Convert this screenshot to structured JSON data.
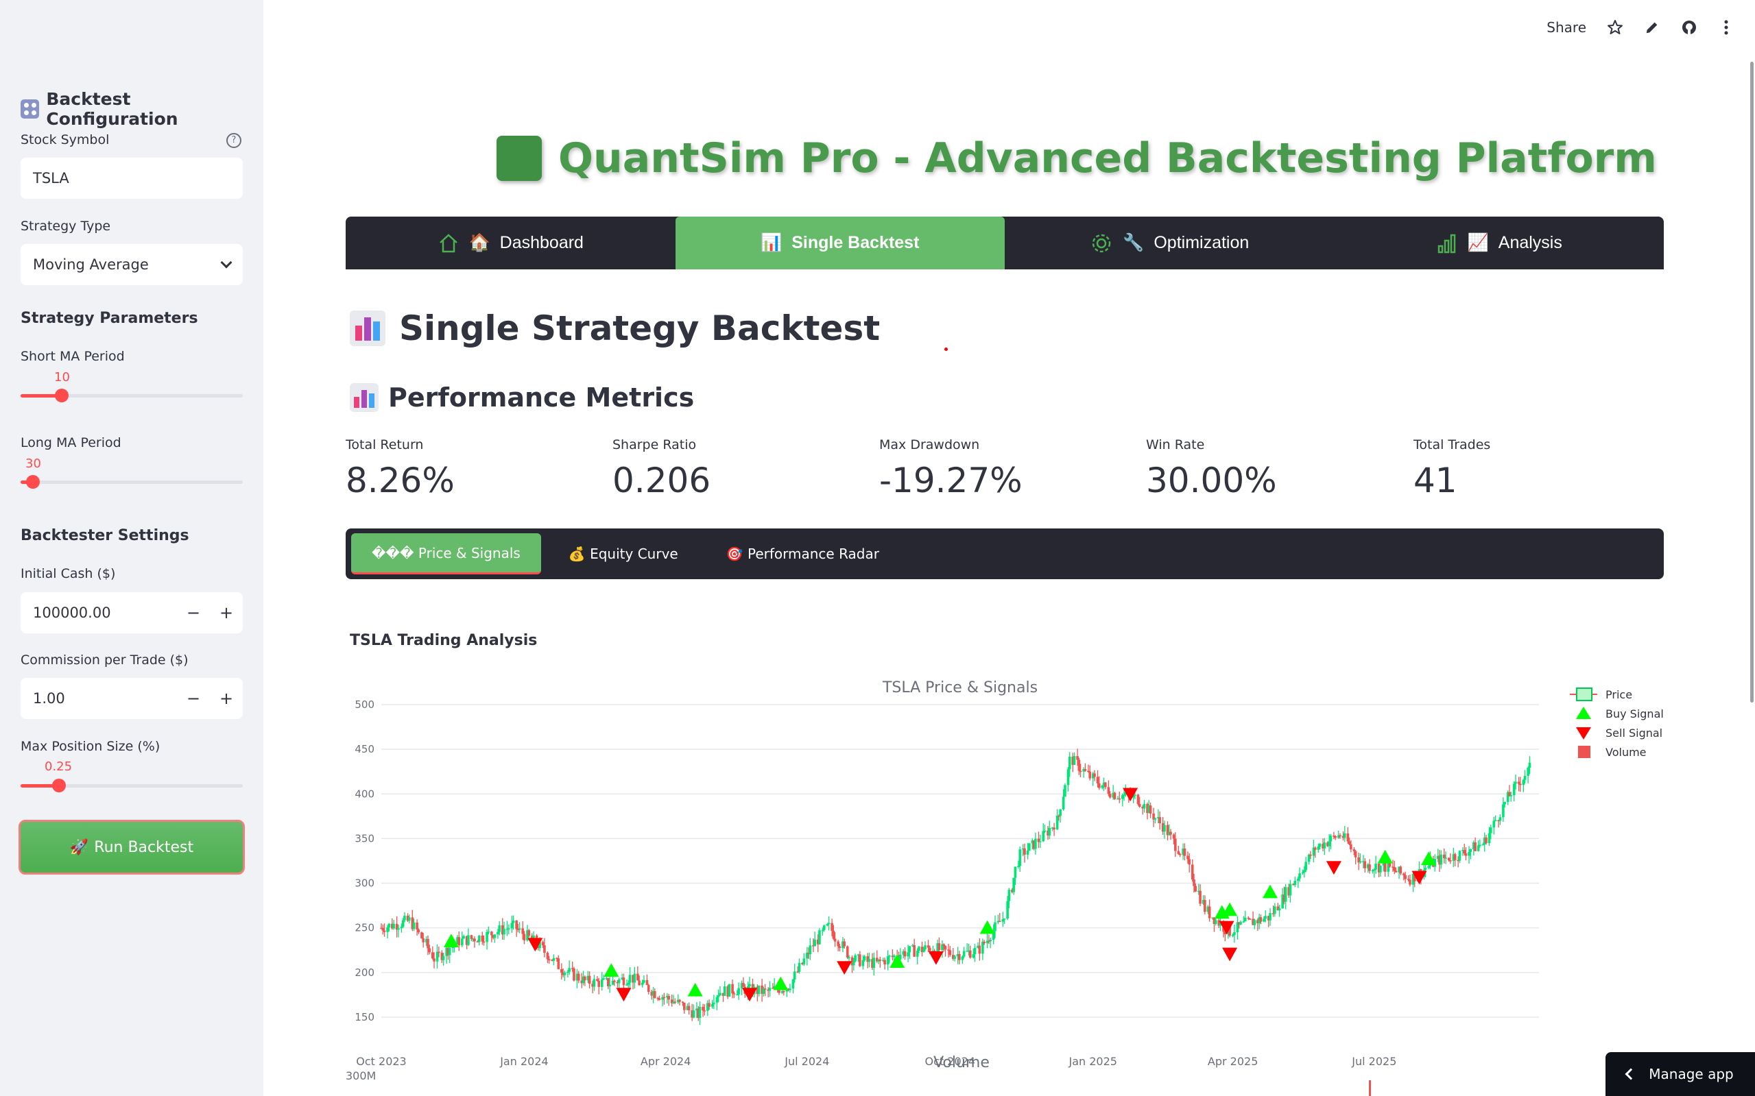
{
  "sidebar": {
    "title": "Backtest Configuration",
    "title_icon": "control-knobs-icon",
    "stock_symbol_label": "Stock Symbol",
    "stock_symbol_value": "TSLA",
    "strategy_type_label": "Strategy Type",
    "strategy_type_value": "Moving Average",
    "strategy_params_heading": "Strategy Parameters",
    "short_ma_label": "Short MA Period",
    "short_ma_value": "10",
    "short_ma_fraction": 0.18,
    "long_ma_label": "Long MA Period",
    "long_ma_value": "30",
    "long_ma_fraction": 0.05,
    "backtester_heading": "Backtester Settings",
    "initial_cash_label": "Initial Cash ($)",
    "initial_cash_value": "100000.00",
    "commission_label": "Commission per Trade ($)",
    "commission_value": "1.00",
    "max_position_label": "Max Position Size (%)",
    "max_position_value": "0.25",
    "max_position_fraction": 0.17,
    "minus": "−",
    "plus": "+",
    "run_button": "Run Backtest",
    "run_icon": "🚀"
  },
  "toolbar": {
    "share": "Share"
  },
  "app_title": "QuantSim Pro - Advanced Backtesting Platform",
  "nav": {
    "tabs": [
      {
        "label": "Dashboard",
        "emoji": "🏠",
        "icon": "home-icon"
      },
      {
        "label": "Single Backtest",
        "emoji": "📊",
        "icon": ""
      },
      {
        "label": "Optimization",
        "emoji": "🔧",
        "icon": "gear-icon"
      },
      {
        "label": "Analysis",
        "emoji": "📈",
        "icon": "bar-chart-icon"
      }
    ],
    "active": 1
  },
  "page": {
    "heading": "Single Strategy Backtest",
    "metrics_heading": "Performance Metrics"
  },
  "metrics": [
    {
      "label": "Total Return",
      "value": "8.26%"
    },
    {
      "label": "Sharpe Ratio",
      "value": "0.206"
    },
    {
      "label": "Max Drawdown",
      "value": "-19.27%"
    },
    {
      "label": "Win Rate",
      "value": "30.00%"
    },
    {
      "label": "Total Trades",
      "value": "41"
    }
  ],
  "subtabs": [
    {
      "label": "��� Price & Signals"
    },
    {
      "label": "💰 Equity Curve"
    },
    {
      "label": "🎯 Performance Radar"
    }
  ],
  "chart_heading": "TSLA Trading Analysis",
  "chart_data": {
    "type": "line",
    "title": "TSLA Price & Signals",
    "subplot_title": "Volume",
    "volume_tick": "300M",
    "yticks": [
      500,
      450,
      400,
      350,
      300,
      250,
      200,
      150
    ],
    "ylim": [
      130,
      510
    ],
    "xticks": [
      "Oct 2023",
      "Jan 2024",
      "Apr 2024",
      "Jul 2024",
      "Oct 2024",
      "Jan 2025",
      "Apr 2025",
      "Jul 2025"
    ],
    "xlim": [
      "2023-10-01",
      "2025-10-15"
    ],
    "legend": [
      "Price",
      "Buy Signal",
      "Sell Signal",
      "Volume"
    ],
    "legend_position": "top-right",
    "colors": {
      "up": "#00e676",
      "down": "#ef5350",
      "buy": "#00ff00",
      "sell": "#ff0000",
      "volume": "#ef5350"
    },
    "series": [
      {
        "name": "Price",
        "x": [
          "2023-10-01",
          "2023-10-20",
          "2023-11-05",
          "2023-11-20",
          "2023-12-05",
          "2023-12-25",
          "2024-01-10",
          "2024-01-25",
          "2024-02-10",
          "2024-02-25",
          "2024-03-10",
          "2024-03-25",
          "2024-04-10",
          "2024-04-22",
          "2024-05-05",
          "2024-05-20",
          "2024-06-05",
          "2024-06-20",
          "2024-07-05",
          "2024-07-15",
          "2024-07-30",
          "2024-08-15",
          "2024-09-01",
          "2024-09-20",
          "2024-10-05",
          "2024-10-20",
          "2024-11-05",
          "2024-11-15",
          "2024-11-30",
          "2024-12-10",
          "2024-12-18",
          "2024-12-30",
          "2025-01-15",
          "2025-01-30",
          "2025-02-15",
          "2025-03-01",
          "2025-03-15",
          "2025-03-30",
          "2025-04-10",
          "2025-04-25",
          "2025-05-10",
          "2025-05-25",
          "2025-06-10",
          "2025-06-25",
          "2025-07-10",
          "2025-07-25",
          "2025-08-10",
          "2025-08-25",
          "2025-09-10",
          "2025-09-25",
          "2025-10-10"
        ],
        "values": [
          250,
          258,
          215,
          235,
          240,
          252,
          232,
          205,
          190,
          188,
          195,
          178,
          165,
          152,
          178,
          182,
          178,
          185,
          230,
          252,
          215,
          210,
          222,
          228,
          220,
          225,
          262,
          330,
          352,
          372,
          440,
          420,
          400,
          395,
          365,
          330,
          270,
          245,
          255,
          262,
          300,
          340,
          355,
          320,
          318,
          305,
          325,
          332,
          345,
          395,
          430
        ]
      },
      {
        "name": "Buy Signal",
        "x": [
          "2023-11-15",
          "2024-02-26",
          "2024-04-20",
          "2024-06-14",
          "2024-08-28",
          "2024-10-25",
          "2025-03-25",
          "2025-03-30",
          "2025-04-25",
          "2025-07-08",
          "2025-08-05"
        ],
        "values": [
          235,
          202,
          180,
          187,
          212,
          250,
          267,
          270,
          290,
          329,
          327
        ]
      },
      {
        "name": "Sell Signal",
        "x": [
          "2024-01-08",
          "2024-03-05",
          "2024-05-25",
          "2024-07-25",
          "2024-09-22",
          "2025-01-25",
          "2025-03-28",
          "2025-03-30",
          "2025-06-05",
          "2025-07-30"
        ],
        "values": [
          232,
          176,
          176,
          206,
          217,
          400,
          251,
          221,
          318,
          307
        ]
      }
    ]
  }
}
